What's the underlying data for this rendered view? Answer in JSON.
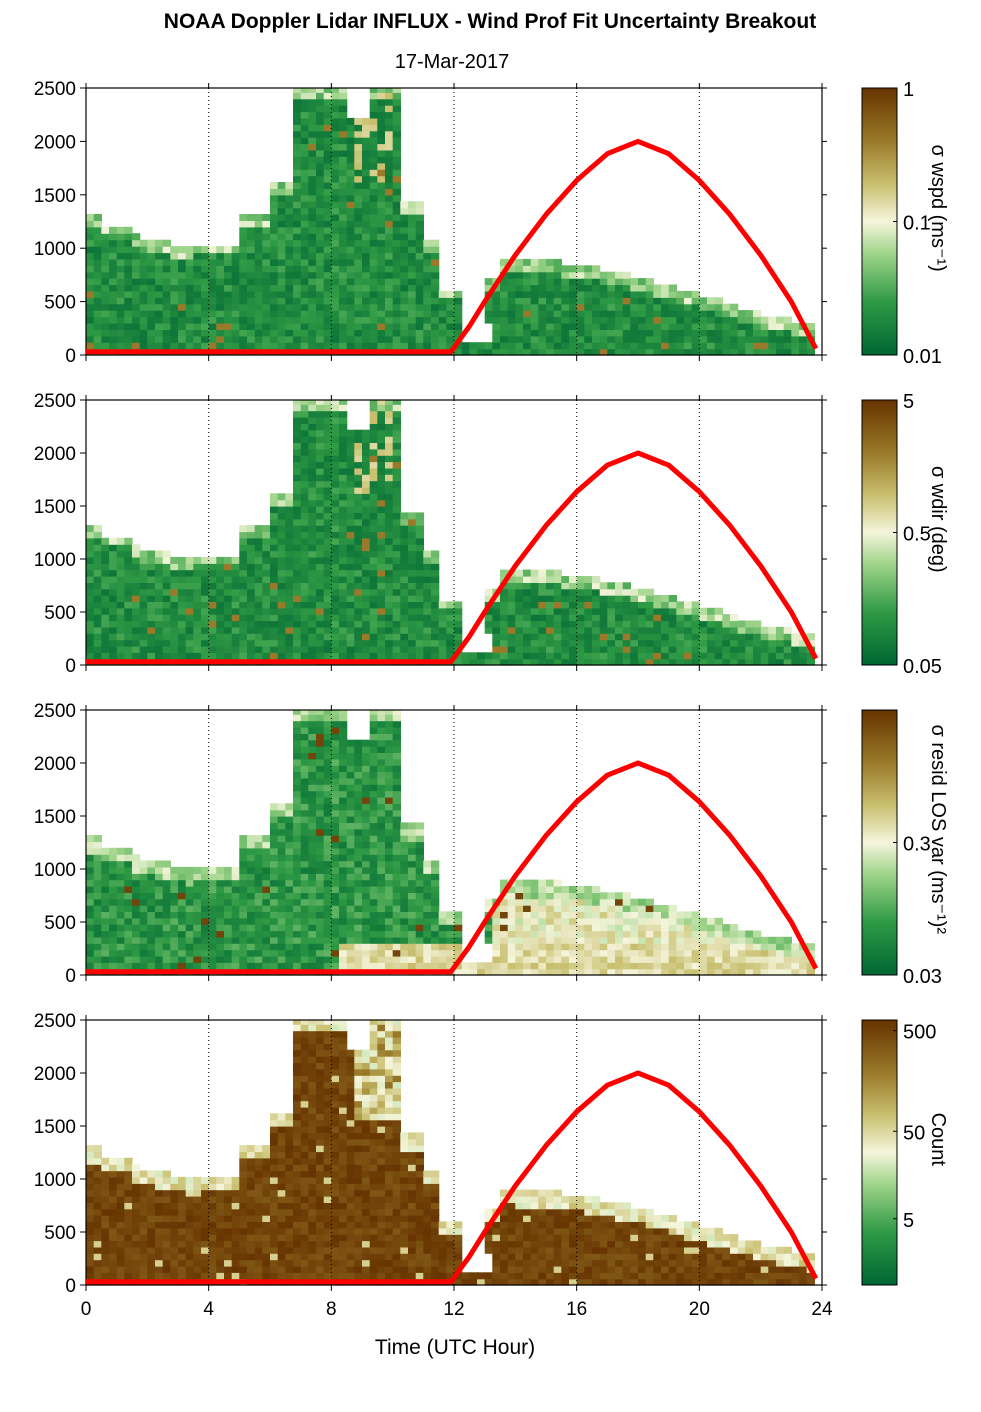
{
  "title": "NOAA Doppler Lidar INFLUX - Wind Prof Fit Uncertainty Breakout",
  "subtitle": "17-Mar-2017",
  "colors": {
    "sun_curve": "#ff0000",
    "colormap_low": "#006633",
    "colormap_mid": "#f5f5dc",
    "colormap_high": "#663300"
  },
  "chart_data": [
    {
      "type": "heatmap",
      "panel": "wind-speed-uncertainty",
      "x_ticks": [
        0,
        4,
        8,
        12,
        16,
        20,
        24
      ],
      "y_ticks": [
        0,
        500,
        1000,
        1500,
        2000,
        2500
      ],
      "xlim": [
        0,
        24
      ],
      "ylim": [
        0,
        2500
      ],
      "colorbar_label": "σ wspd (ms⁻¹)",
      "colorbar_scale": "log",
      "colorbar_ticks": [
        {
          "label": "0.01",
          "frac": 0.0
        },
        {
          "label": "0.1",
          "frac": 0.5
        },
        {
          "label": "1",
          "frac": 1.0
        }
      ]
    },
    {
      "type": "heatmap",
      "panel": "wind-direction-uncertainty",
      "x_ticks": [
        0,
        4,
        8,
        12,
        16,
        20,
        24
      ],
      "y_ticks": [
        0,
        500,
        1000,
        1500,
        2000,
        2500
      ],
      "xlim": [
        0,
        24
      ],
      "ylim": [
        0,
        2500
      ],
      "colorbar_label": "σ wdir (deg)",
      "colorbar_scale": "log",
      "colorbar_ticks": [
        {
          "label": "0.05",
          "frac": 0.0
        },
        {
          "label": "0.5",
          "frac": 0.5
        },
        {
          "label": "5",
          "frac": 1.0
        }
      ]
    },
    {
      "type": "heatmap",
      "panel": "residual-los-variance",
      "x_ticks": [
        0,
        4,
        8,
        12,
        16,
        20,
        24
      ],
      "y_ticks": [
        0,
        500,
        1000,
        1500,
        2000,
        2500
      ],
      "xlim": [
        0,
        24
      ],
      "ylim": [
        0,
        2500
      ],
      "colorbar_label": "σ resid LOS var (ms⁻¹)²",
      "colorbar_scale": "log",
      "colorbar_ticks": [
        {
          "label": "0.03",
          "frac": 0.0
        },
        {
          "label": "0.3",
          "frac": 0.5
        }
      ]
    },
    {
      "type": "heatmap",
      "panel": "count",
      "x_ticks": [
        0,
        4,
        8,
        12,
        16,
        20,
        24
      ],
      "y_ticks": [
        0,
        500,
        1000,
        1500,
        2000,
        2500
      ],
      "xlim": [
        0,
        24
      ],
      "ylim": [
        0,
        2500
      ],
      "xlabel": "Time (UTC Hour)",
      "colorbar_label": "Count",
      "colorbar_scale": "log",
      "colorbar_ticks": [
        {
          "label": "5",
          "frac": 0.25
        },
        {
          "label": "50",
          "frac": 0.58
        },
        {
          "label": "500",
          "frac": 0.96
        }
      ]
    }
  ],
  "sun_curve": {
    "x": [
      0,
      11.9,
      12.5,
      13,
      14,
      15,
      16,
      17,
      18,
      19,
      20,
      21,
      22,
      23,
      23.8
    ],
    "y": [
      30,
      30,
      268,
      500,
      935,
      1315,
      1635,
      1885,
      2000,
      1885,
      1635,
      1315,
      935,
      500,
      60
    ]
  }
}
